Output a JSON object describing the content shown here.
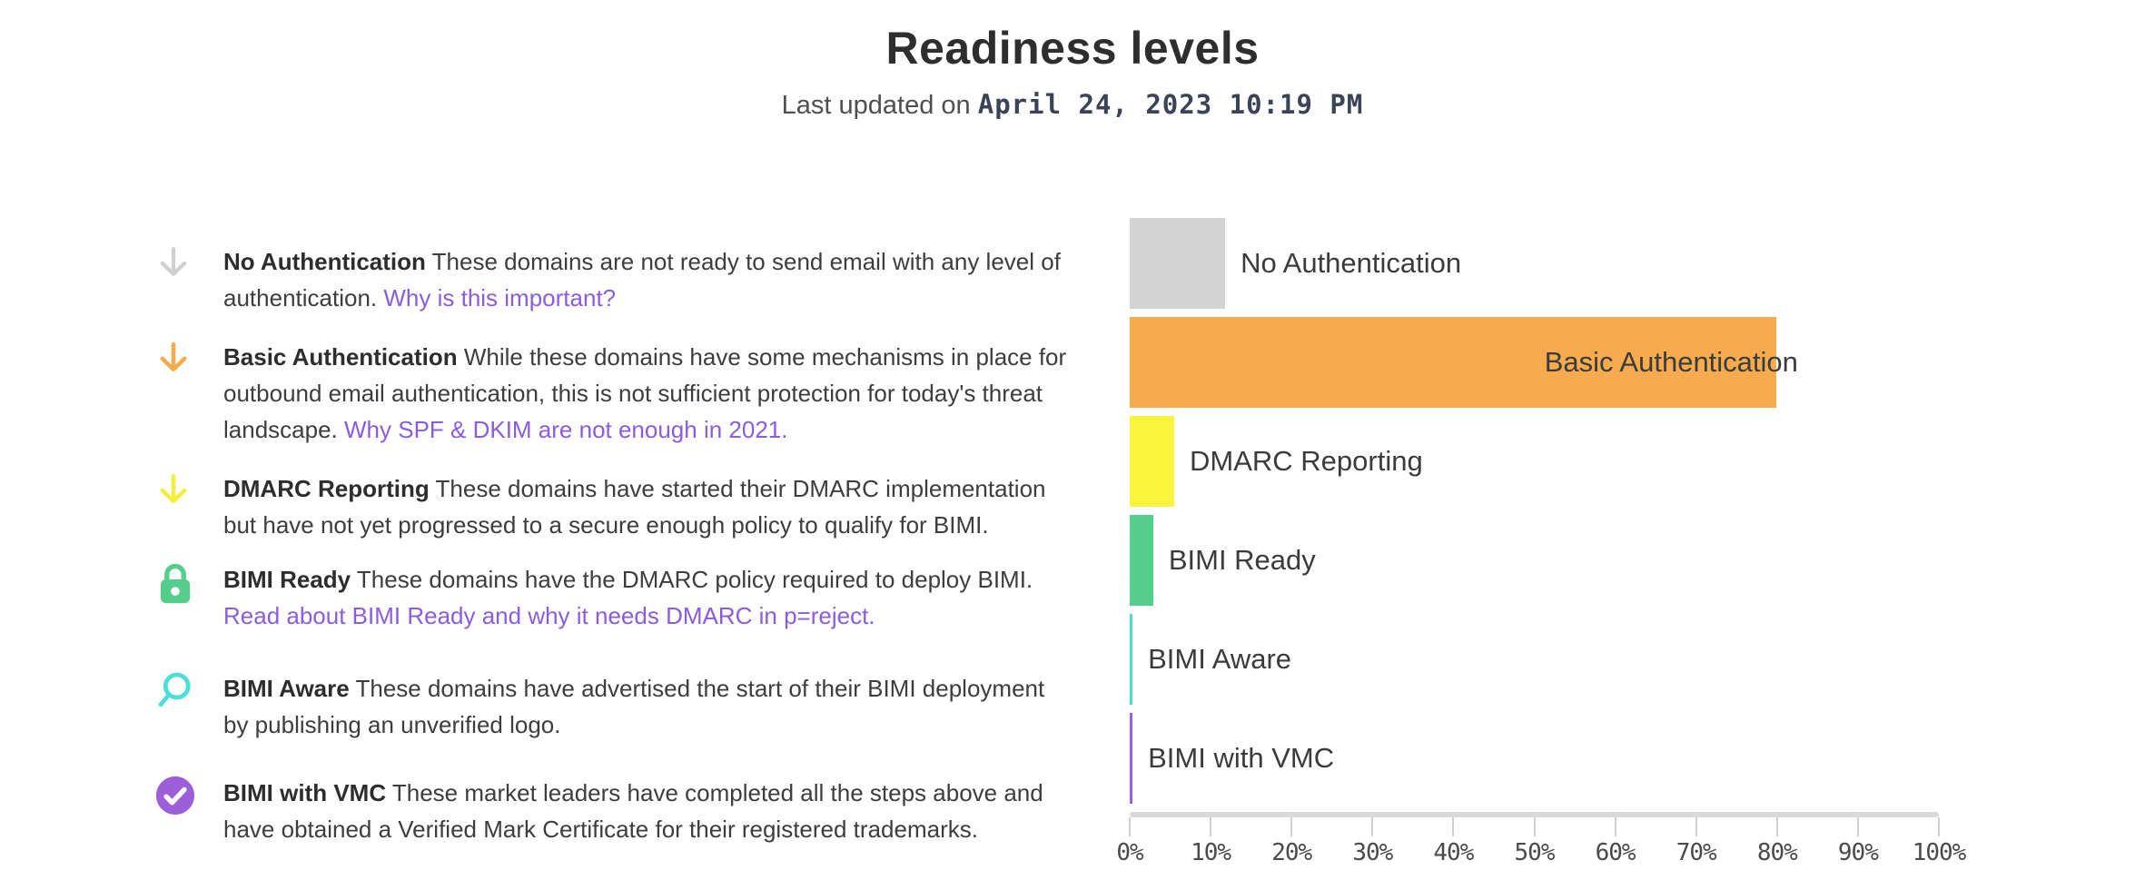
{
  "header": {
    "title": "Readiness levels",
    "subtitle_prefix": "Last updated on",
    "subtitle_date": "April 24, 2023 10:19 PM"
  },
  "legend": {
    "items": [
      {
        "icon": "arrow-down",
        "color": "#cfcfcf",
        "title": "No Authentication",
        "description": "These domains are not ready to send email with any level of authentication.",
        "link": "Why is this important?"
      },
      {
        "icon": "arrow-down",
        "color": "#f6ac4e",
        "title": "Basic Authentication",
        "description": "While these domains have some mechanisms in place for outbound email authentication, this is not sufficient protection for today's threat landscape.",
        "link": "Why SPF & DKIM are not enough in 2021."
      },
      {
        "icon": "arrow-down",
        "color": "#f5ee3c",
        "title": "DMARC Reporting",
        "description": "These domains have started their DMARC implementation but have not yet progressed to a secure enough policy to qualify for BIMI.",
        "link": ""
      },
      {
        "icon": "lock",
        "color": "#55ce8c",
        "title": "BIMI Ready",
        "description": "These domains have the DMARC policy required to deploy BIMI.",
        "link": "Read about BIMI Ready and why it needs DMARC in p=reject."
      },
      {
        "icon": "magnifier",
        "color": "#4adfd8",
        "title": "BIMI Aware",
        "description": "These domains have advertised the start of their BIMI deployment by publishing an unverified logo.",
        "link": ""
      },
      {
        "icon": "check-circle",
        "color": "#9d5fd9",
        "title": "BIMI with VMC",
        "description": "These market leaders have completed all the steps above and have obtained a Verified Mark Certificate for their registered trademarks.",
        "link": ""
      }
    ]
  },
  "chart_data": {
    "type": "bar",
    "orientation": "horizontal",
    "title": "",
    "xlabel": "",
    "ylabel": "",
    "categories": [
      "No Authentication",
      "Basic Authentication",
      "DMARC Reporting",
      "BIMI Ready",
      "BIMI Aware",
      "BIMI with VMC"
    ],
    "values": [
      11.8,
      79.9,
      5.5,
      2.9,
      0.35,
      0.35
    ],
    "unit": "%",
    "colors": [
      "#d3d3d3",
      "#f6ac4e",
      "#f9f43e",
      "#55ce8c",
      "#4fdcd6",
      "#9c61e3"
    ],
    "xlim": [
      0,
      100
    ],
    "x_ticks": [
      "0%",
      "10%",
      "20%",
      "30%",
      "40%",
      "50%",
      "60%",
      "70%",
      "80%",
      "90%",
      "100%"
    ],
    "grid": false,
    "legend_position": "none",
    "label_inside": [
      false,
      true,
      false,
      false,
      false,
      false
    ]
  }
}
